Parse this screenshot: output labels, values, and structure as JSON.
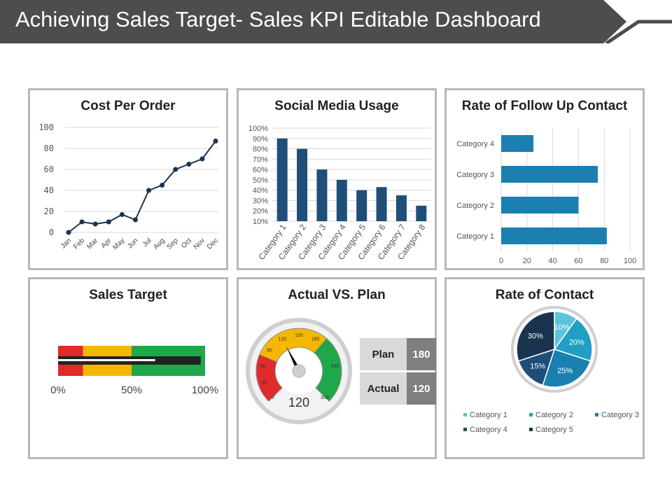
{
  "title": "Achieving Sales Target- Sales KPI Editable Dashboard",
  "colors": {
    "banner": "#4d4d4d",
    "dark_blue": "#1f4e79",
    "mid_blue": "#1b7fb0",
    "teal": "#1f9fc2",
    "light_teal": "#5cc4da",
    "navy": "#1a3450",
    "red": "#e12a2a",
    "yellow": "#f5b800",
    "green": "#1ea84a"
  },
  "chart_data": [
    {
      "type": "line",
      "title": "Cost Per Order",
      "categories": [
        "Jan",
        "Feb",
        "Mar",
        "Apr",
        "May",
        "Jun",
        "Jul",
        "Aug",
        "Sep",
        "Oct",
        "Nov",
        "Dec"
      ],
      "values": [
        0,
        10,
        8,
        10,
        17,
        12,
        40,
        45,
        60,
        65,
        70,
        87
      ],
      "ylim": [
        0,
        100
      ],
      "yticks": [
        "0",
        "20",
        "40",
        "60",
        "80",
        "100"
      ]
    },
    {
      "type": "bar",
      "title": "Social Media Usage",
      "categories": [
        "Category 1",
        "Category 2",
        "Category 3",
        "Category 4",
        "Category 5",
        "Category 6",
        "Category 7",
        "Category 8"
      ],
      "values": [
        90,
        80,
        60,
        50,
        40,
        43,
        35,
        25
      ],
      "ylim": [
        10,
        100
      ],
      "yticks": [
        "10%",
        "20%",
        "30%",
        "40%",
        "50%",
        "60%",
        "70%",
        "80%",
        "90%",
        "100%"
      ]
    },
    {
      "type": "bar",
      "orientation": "horizontal",
      "title": "Rate of Follow Up Contact",
      "categories": [
        "Category 1",
        "Category 2",
        "Category 3",
        "Category 4"
      ],
      "values": [
        82,
        60,
        75,
        25
      ],
      "xlim": [
        0,
        100
      ],
      "xticks": [
        "0",
        "20",
        "40",
        "60",
        "80",
        "100"
      ]
    },
    {
      "type": "bullet",
      "title": "Sales Target",
      "bands": [
        {
          "from": 0,
          "to": 17
        },
        {
          "from": 17,
          "to": 50
        },
        {
          "from": 50,
          "to": 100
        }
      ],
      "target": 97,
      "actual": 66,
      "ticks": [
        "0%",
        "50%",
        "100%"
      ]
    },
    {
      "type": "gauge",
      "title": "Actual VS. Plan",
      "min": 0,
      "max": 300,
      "value": 120,
      "value_label": "120",
      "ticks": [
        "0",
        "30",
        "60",
        "90",
        "120",
        "150",
        "180",
        "240",
        "300"
      ],
      "table": [
        {
          "label": "Plan",
          "value": "180"
        },
        {
          "label": "Actual",
          "value": "120"
        }
      ]
    },
    {
      "type": "pie",
      "title": "Rate of Contact",
      "slices": [
        {
          "name": "Category 1",
          "value": 10,
          "label": "10%"
        },
        {
          "name": "Category 2",
          "value": 20,
          "label": "20%"
        },
        {
          "name": "Category 3",
          "value": 25,
          "label": "25%"
        },
        {
          "name": "Category 4",
          "value": 15,
          "label": "15%"
        },
        {
          "name": "Category 5",
          "value": 30,
          "label": "30%"
        }
      ]
    }
  ]
}
